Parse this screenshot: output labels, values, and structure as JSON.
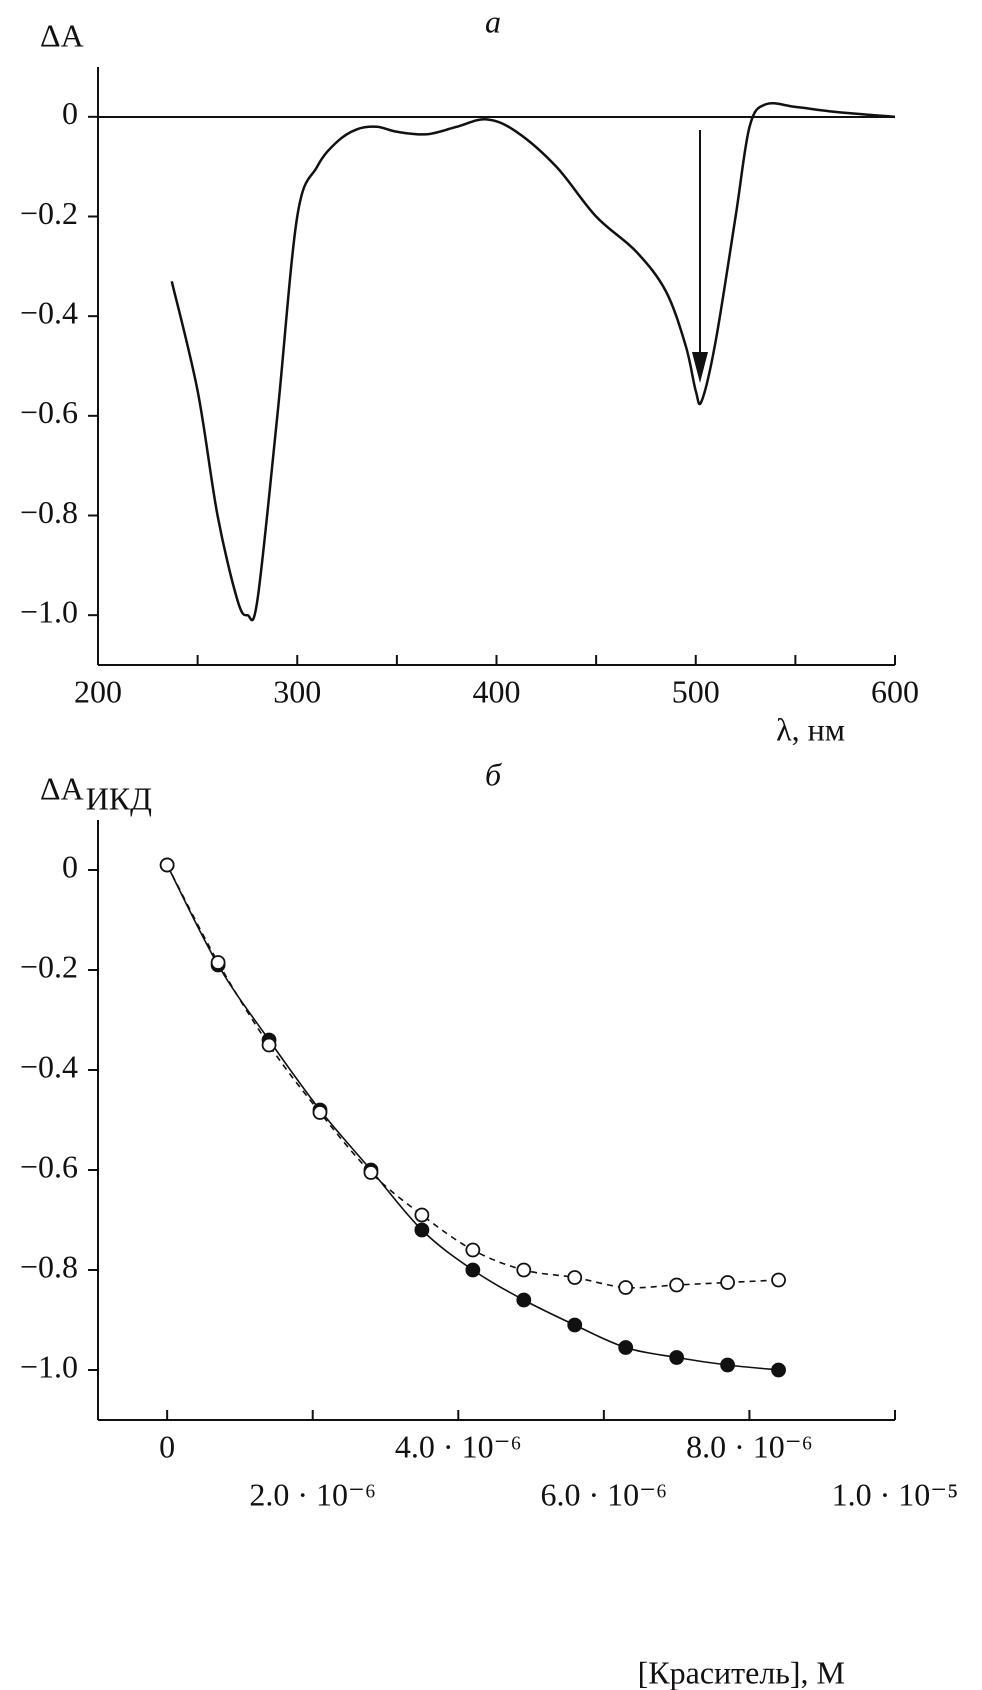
{
  "chart_data": [
    {
      "type": "line",
      "panel_label": "а",
      "ylabel": "ΔA",
      "xlabel": "λ, нм",
      "color": "#111111",
      "x": [
        237,
        250,
        260,
        270,
        275,
        280,
        290,
        300,
        310,
        320,
        330,
        340,
        350,
        365,
        380,
        395,
        410,
        430,
        450,
        470,
        485,
        495,
        500,
        503,
        510,
        520,
        527,
        535,
        550,
        570,
        600
      ],
      "values": [
        -0.33,
        -0.55,
        -0.8,
        -0.97,
        -1.0,
        -0.97,
        -0.6,
        -0.2,
        -0.1,
        -0.05,
        -0.025,
        -0.02,
        -0.03,
        -0.035,
        -0.02,
        -0.005,
        -0.03,
        -0.1,
        -0.2,
        -0.27,
        -0.35,
        -0.46,
        -0.55,
        -0.57,
        -0.45,
        -0.2,
        -0.02,
        0.025,
        0.02,
        0.01,
        0
      ],
      "xlim": [
        200,
        600
      ],
      "ylim": [
        -1.1,
        0.1
      ],
      "xticks": [
        200,
        300,
        400,
        500,
        600
      ],
      "xminorticks": [
        250,
        350,
        450,
        550
      ],
      "yticks": [
        0,
        {
          "value": -0.2,
          "label": "−0.2"
        },
        {
          "value": -0.4,
          "label": "−0.4"
        },
        {
          "value": -0.6,
          "label": "−0.6"
        },
        {
          "value": -0.8,
          "label": "−0.8"
        },
        {
          "value": -1.0,
          "label": "−1.0"
        }
      ]
    },
    {
      "type": "scatter",
      "panel_label": "б",
      "ylabel": "ΔA",
      "ylabel_subscript": "ИКД",
      "xlabel": "[Краситель], М",
      "x": [
        0,
        7e-07,
        1.4e-06,
        2.1e-06,
        2.8e-06,
        3.5e-06,
        4.2e-06,
        4.9e-06,
        5.6e-06,
        6.3e-06,
        7e-06,
        7.7e-06,
        8.4e-06
      ],
      "series": [
        {
          "color": "#111111",
          "marker": "filled",
          "linestyle": "solid",
          "values": [
            0.01,
            -0.19,
            -0.34,
            -0.48,
            -0.6,
            -0.72,
            -0.8,
            -0.86,
            -0.91,
            -0.955,
            -0.975,
            -0.99,
            -1.0
          ]
        },
        {
          "color": "#111111",
          "marker": "open",
          "linestyle": "dashed",
          "values": [
            0.01,
            -0.185,
            -0.35,
            -0.485,
            -0.605,
            -0.69,
            -0.76,
            -0.8,
            -0.815,
            -0.835,
            -0.83,
            -0.825,
            -0.82
          ]
        }
      ],
      "xlim": [
        -9.5e-07,
        1e-05
      ],
      "ylim": [
        -1.1,
        0.1
      ],
      "xticks": [
        0,
        {
          "value": 2e-06,
          "label": "2.0 · 10⁻⁶"
        },
        {
          "value": 4e-06,
          "label": "4.0 · 10⁻⁶"
        },
        {
          "value": 6e-06,
          "label": "6.0 · 10⁻⁶"
        },
        {
          "value": 8e-06,
          "label": "8.0 · 10⁻⁶"
        },
        {
          "value": 1e-05,
          "label": "1.0 · 10⁻⁵"
        }
      ],
      "yticks": [
        0,
        {
          "value": -0.2,
          "label": "−0.2"
        },
        {
          "value": -0.4,
          "label": "−0.4"
        },
        {
          "value": -0.6,
          "label": "−0.6"
        },
        {
          "value": -0.8,
          "label": "−0.8"
        },
        {
          "value": -1.0,
          "label": "−1.0"
        }
      ]
    }
  ]
}
